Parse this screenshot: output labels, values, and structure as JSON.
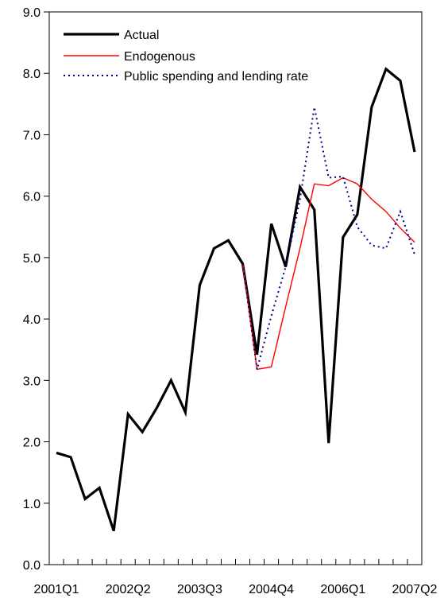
{
  "chart_data": {
    "type": "line",
    "title": "",
    "xlabel": "",
    "ylabel": "",
    "ylim": [
      0,
      9
    ],
    "yticks": [
      "0.0",
      "1.0",
      "2.0",
      "3.0",
      "4.0",
      "5.0",
      "6.0",
      "7.0",
      "8.0",
      "9.0"
    ],
    "x": [
      "2001Q1",
      "2001Q2",
      "2001Q3",
      "2001Q4",
      "2002Q1",
      "2002Q2",
      "2002Q3",
      "2002Q4",
      "2003Q1",
      "2003Q2",
      "2003Q3",
      "2003Q4",
      "2004Q1",
      "2004Q2",
      "2004Q3",
      "2004Q4",
      "2005Q1",
      "2005Q2",
      "2005Q3",
      "2005Q4",
      "2006Q1",
      "2006Q2",
      "2006Q3",
      "2006Q4",
      "2007Q1",
      "2007Q2"
    ],
    "xtick_labels": [
      "2001Q1",
      "2002Q2",
      "2003Q3",
      "2004Q4",
      "2006Q1",
      "2007Q2"
    ],
    "grid": false,
    "legend_position": "top-left",
    "series": [
      {
        "name": "Actual",
        "color": "#000000",
        "style": "solid-thick",
        "values": [
          1.82,
          1.75,
          1.07,
          1.25,
          0.55,
          2.45,
          2.16,
          2.55,
          3.0,
          2.48,
          4.55,
          5.15,
          5.28,
          4.9,
          3.42,
          5.55,
          4.85,
          6.15,
          5.78,
          1.98,
          5.33,
          5.7,
          7.45,
          8.07,
          7.88,
          6.72
        ]
      },
      {
        "name": "Endogenous",
        "color": "#ff0000",
        "style": "solid-thin",
        "values": [
          null,
          null,
          null,
          null,
          null,
          null,
          null,
          null,
          null,
          null,
          null,
          null,
          null,
          4.9,
          3.18,
          3.22,
          4.2,
          5.15,
          6.2,
          6.17,
          6.3,
          6.2,
          5.95,
          5.75,
          5.48,
          5.25
        ]
      },
      {
        "name": "Public spending and lending rate",
        "color": "#00008b",
        "style": "dotted",
        "values": [
          null,
          null,
          null,
          null,
          null,
          null,
          null,
          null,
          null,
          null,
          null,
          null,
          null,
          4.9,
          3.18,
          4.05,
          4.85,
          5.95,
          7.45,
          6.3,
          6.32,
          5.5,
          5.2,
          5.15,
          5.75,
          5.05
        ]
      }
    ]
  }
}
